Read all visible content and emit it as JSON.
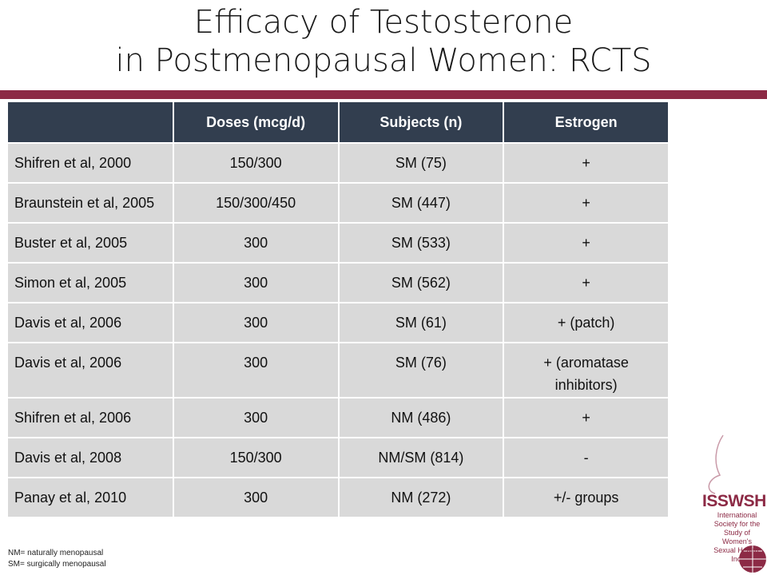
{
  "header": {
    "title": [
      "Efficacy of Testosterone",
      "in Postmenopausal Women: RCTS"
    ]
  },
  "table": {
    "columns": [
      "",
      "Doses (mcg/d)",
      "Subjects (n)",
      "Estrogen"
    ],
    "rows": [
      [
        "Shifren et al, 2000",
        "150/300",
        "SM (75)",
        "+"
      ],
      [
        "Braunstein et al, 2005",
        "150/300/450",
        "SM (447)",
        "+"
      ],
      [
        "Buster et al, 2005",
        "300",
        "SM (533)",
        "+"
      ],
      [
        "Simon et al, 2005",
        "300",
        "SM (562)",
        "+"
      ],
      [
        "Davis et al, 2006",
        "300",
        "SM (61)",
        "+ (patch)"
      ],
      [
        "Davis et al, 2006",
        "300",
        "SM (76)",
        "+ (aromatase inhibitors)"
      ],
      [
        "Shifren et al, 2006",
        "300",
        "NM (486)",
        "+"
      ],
      [
        "Davis et al, 2008",
        "150/300",
        "NM/SM (814)",
        "-"
      ],
      [
        "Panay et al, 2010",
        "300",
        "NM (272)",
        "+/- groups"
      ]
    ]
  },
  "footnotes": [
    "NM= naturally menopausal",
    "SM= surgically menopausal"
  ],
  "logo": {
    "name": "ISSWSH",
    "lines": [
      "International",
      "Society for the",
      "Study of",
      "Women's",
      "Sexual Health, Inc."
    ]
  }
}
